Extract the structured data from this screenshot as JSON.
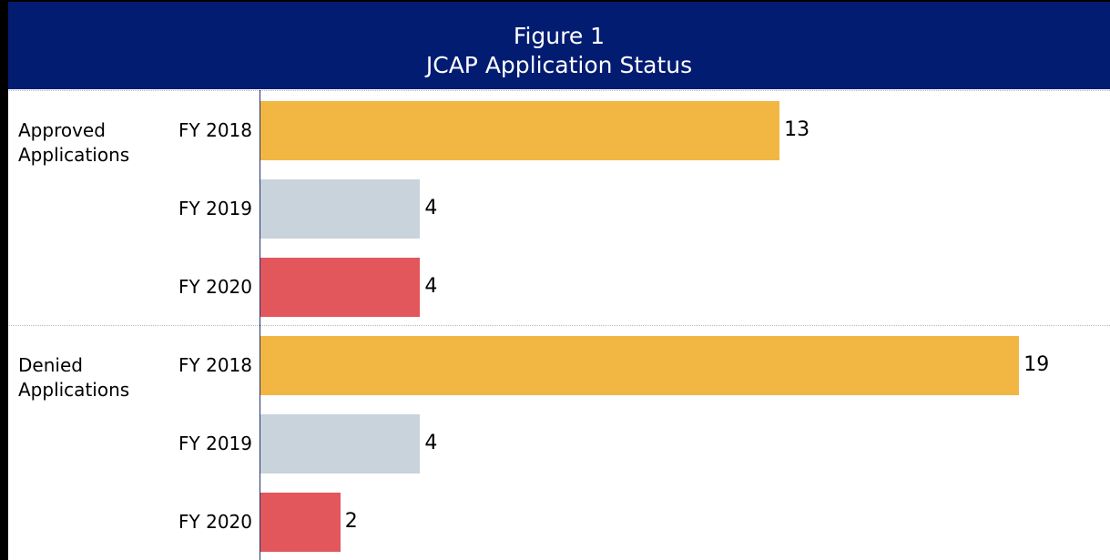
{
  "chart_data": {
    "type": "bar",
    "orientation": "horizontal",
    "title": "Figure 1",
    "subtitle": "JCAP Application Status",
    "categories": [
      "Approved Applications",
      "Denied Applications"
    ],
    "series": [
      {
        "name": "FY 2018",
        "color": "#f2b643",
        "values": [
          13,
          19
        ]
      },
      {
        "name": "FY 2019",
        "color": "#c8d3dc",
        "values": [
          4,
          4
        ]
      },
      {
        "name": "FY 2020",
        "color": "#e2575b",
        "values": [
          4,
          2
        ]
      }
    ],
    "xlim": [
      0,
      21
    ]
  }
}
